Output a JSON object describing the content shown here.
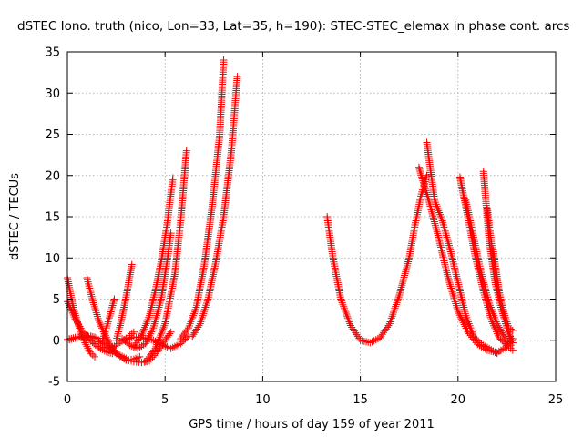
{
  "chart_data": {
    "type": "scatter",
    "title": "dSTEC Iono. truth (nico, Lon=33, Lat=35, h=190): STEC-STEC_elemax in phase cont. arcs",
    "xlabel": "GPS time / hours of day 159 of year 2011",
    "ylabel": "dSTEC  / TECUs",
    "xlim": [
      0,
      25
    ],
    "ylim": [
      -5,
      35
    ],
    "xticks": [
      0,
      5,
      10,
      15,
      20,
      25
    ],
    "yticks": [
      -5,
      0,
      5,
      10,
      15,
      20,
      25,
      30,
      35
    ],
    "grid": true,
    "marker": "+",
    "color": "#ff0000",
    "series": [
      {
        "x": [
          0.0,
          0.3,
          0.6,
          0.9,
          1.2,
          1.4
        ],
        "y": [
          7.6,
          4.0,
          1.5,
          -0.3,
          -1.6,
          -2.0
        ]
      },
      {
        "x": [
          0.0,
          0.4,
          0.8,
          1.2,
          1.6,
          2.0,
          2.3
        ],
        "y": [
          4.7,
          2.6,
          1.0,
          -0.1,
          -0.9,
          -1.4,
          -1.6
        ]
      },
      {
        "x": [
          0.0,
          0.5,
          1.0,
          1.5,
          2.0,
          2.5,
          3.0
        ],
        "y": [
          0.1,
          0.4,
          0.5,
          0.2,
          -0.6,
          -1.6,
          -2.2
        ]
      },
      {
        "x": [
          0.0,
          0.3,
          0.6,
          0.9,
          1.2,
          1.5
        ],
        "y": [
          0.0,
          0.2,
          0.4,
          0.6,
          0.5,
          0.3
        ]
      },
      {
        "x": [
          1.0,
          1.3,
          1.6,
          1.9,
          2.2,
          2.6,
          3.0,
          3.4,
          3.7
        ],
        "y": [
          7.6,
          4.8,
          2.4,
          0.8,
          -0.6,
          -1.8,
          -2.4,
          -2.3,
          -2.0
        ]
      },
      {
        "x": [
          1.6,
          1.9,
          2.2,
          2.5,
          2.8,
          3.1,
          3.4
        ],
        "y": [
          -0.2,
          -0.8,
          -1.0,
          -0.6,
          -0.1,
          0.4,
          1.0
        ]
      },
      {
        "x": [
          1.8,
          2.0,
          2.2,
          2.4
        ],
        "y": [
          0.0,
          1.5,
          3.2,
          5.0
        ]
      },
      {
        "x": [
          2.5,
          2.7,
          2.9,
          3.1,
          3.3
        ],
        "y": [
          0.0,
          1.8,
          4.0,
          6.5,
          9.2
        ]
      },
      {
        "x": [
          2.2,
          2.6,
          3.0,
          3.4,
          3.8,
          4.2,
          4.6,
          5.0,
          5.3
        ],
        "y": [
          -1.0,
          -1.8,
          -2.4,
          -2.6,
          -2.7,
          -2.5,
          -1.4,
          0.0,
          1.0
        ]
      },
      {
        "x": [
          3.4,
          3.8,
          4.2,
          4.5,
          4.8,
          5.1,
          5.4
        ],
        "y": [
          -0.8,
          0.6,
          3.0,
          6.0,
          9.5,
          14.0,
          19.7
        ]
      },
      {
        "x": [
          2.8,
          3.2,
          3.6,
          4.0,
          4.4,
          4.8,
          5.1,
          5.3
        ],
        "y": [
          0.2,
          -0.6,
          -1.0,
          -0.4,
          1.5,
          5.0,
          9.5,
          13.0
        ]
      },
      {
        "x": [
          4.0,
          4.5,
          5.0,
          5.5,
          5.8,
          6.1
        ],
        "y": [
          -2.6,
          -1.0,
          2.0,
          8.0,
          14.5,
          23.0
        ]
      },
      {
        "x": [
          2.9,
          3.4,
          3.9,
          4.4,
          4.9,
          5.3,
          5.8,
          6.2
        ],
        "y": [
          0.0,
          0.4,
          0.3,
          0.0,
          -0.6,
          -1.0,
          -0.4,
          0.5
        ]
      },
      {
        "x": [
          5.8,
          6.2,
          6.6,
          7.0,
          7.4,
          7.8,
          8.0
        ],
        "y": [
          0.2,
          1.5,
          4.0,
          9.0,
          16.0,
          25.0,
          34.0
        ]
      },
      {
        "x": [
          6.4,
          6.8,
          7.2,
          7.6,
          8.0,
          8.4,
          8.7
        ],
        "y": [
          0.5,
          2.0,
          5.0,
          9.5,
          15.0,
          23.0,
          32.0
        ]
      },
      {
        "x": [
          13.3,
          13.6,
          14.0,
          14.5,
          15.0,
          15.5,
          16.0,
          16.5,
          17.0,
          17.5,
          17.8,
          18.1,
          18.4
        ],
        "y": [
          15.0,
          10.0,
          5.0,
          1.8,
          0.0,
          -0.3,
          0.3,
          2.0,
          5.5,
          10.0,
          14.0,
          17.5,
          20.0
        ]
      },
      {
        "x": [
          18.0,
          18.5,
          19.0,
          19.5,
          20.0,
          20.5,
          21.0,
          21.5,
          22.0,
          22.5,
          22.8
        ],
        "y": [
          21.0,
          17.0,
          12.5,
          7.5,
          3.5,
          1.0,
          -0.5,
          -1.2,
          -1.5,
          -0.8,
          0.2
        ]
      },
      {
        "x": [
          18.4,
          18.8,
          19.2,
          19.6,
          20.0,
          20.4,
          20.8,
          21.2,
          21.6,
          22.0
        ],
        "y": [
          24.0,
          17.0,
          14.5,
          11.0,
          7.0,
          3.0,
          0.5,
          -0.5,
          -1.0,
          -1.6
        ]
      },
      {
        "x": [
          20.1,
          20.5,
          20.9,
          21.3,
          21.7,
          22.1,
          22.5,
          22.8
        ],
        "y": [
          19.8,
          15.0,
          10.0,
          6.0,
          2.5,
          0.3,
          -0.6,
          -1.2
        ]
      },
      {
        "x": [
          20.4,
          20.8,
          21.2,
          21.6,
          22.0,
          22.4,
          22.7
        ],
        "y": [
          17.0,
          12.5,
          8.0,
          4.5,
          2.0,
          0.3,
          -0.6
        ]
      },
      {
        "x": [
          21.3,
          21.6,
          21.9,
          22.2,
          22.5,
          22.8
        ],
        "y": [
          20.5,
          12.0,
          7.0,
          4.0,
          1.5,
          -0.3
        ]
      },
      {
        "x": [
          21.5,
          21.8,
          22.1,
          22.4,
          22.6,
          22.8
        ],
        "y": [
          16.0,
          10.0,
          5.5,
          3.0,
          1.5,
          1.2
        ]
      },
      {
        "x": [
          21.8,
          22.1,
          22.4,
          22.7
        ],
        "y": [
          11.0,
          6.0,
          2.5,
          0.0
        ]
      }
    ]
  }
}
